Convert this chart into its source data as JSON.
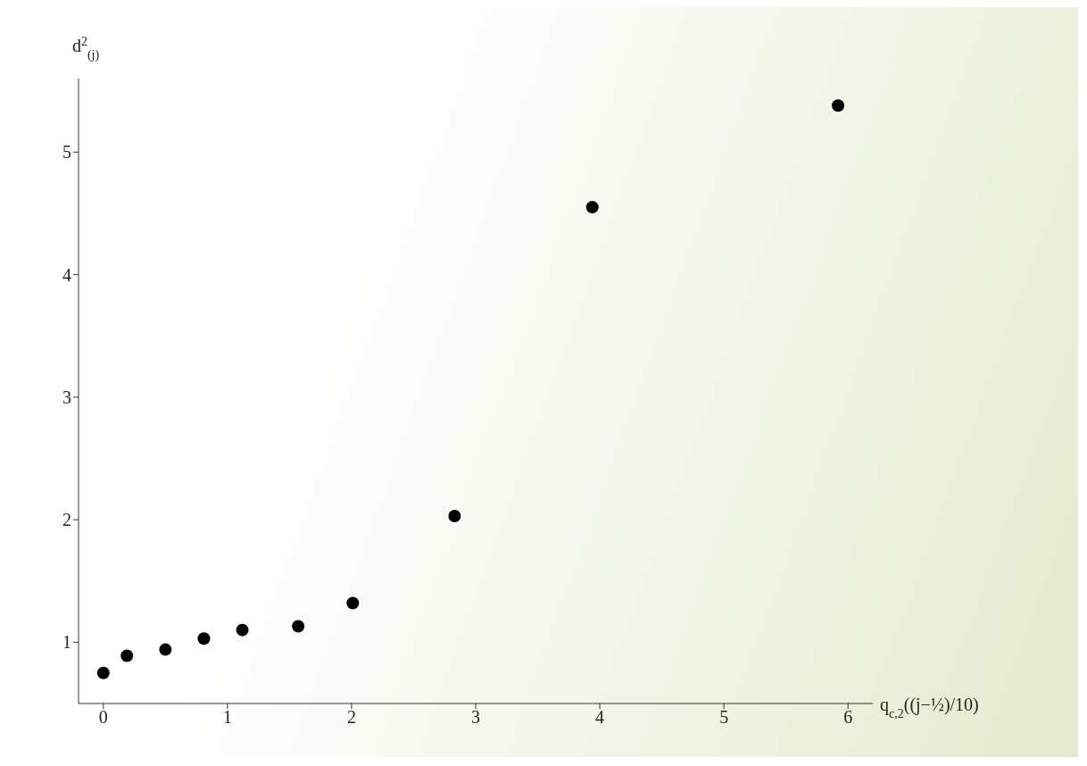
{
  "chart_data": {
    "type": "scatter",
    "xlabel": "q$_{c,2}$((j−½)/10)",
    "ylabel": "d$^{2}$$_{(j)}$",
    "x": [
      0.0,
      0.19,
      0.5,
      0.81,
      1.12,
      1.57,
      2.01,
      2.83,
      3.94,
      5.92
    ],
    "series": [
      {
        "color": "#000000",
        "values": [
          0.75,
          0.89,
          0.94,
          1.03,
          1.1,
          1.13,
          1.32,
          2.03,
          4.55,
          5.38
        ]
      }
    ],
    "xlim": [
      -0.2,
      6.2
    ],
    "ylim": [
      0.5,
      5.6
    ],
    "xticks": [
      0,
      1,
      2,
      3,
      4,
      5,
      6
    ],
    "yticks": [
      1,
      2,
      3,
      4,
      5
    ],
    "grid": false,
    "marker": "circle"
  }
}
